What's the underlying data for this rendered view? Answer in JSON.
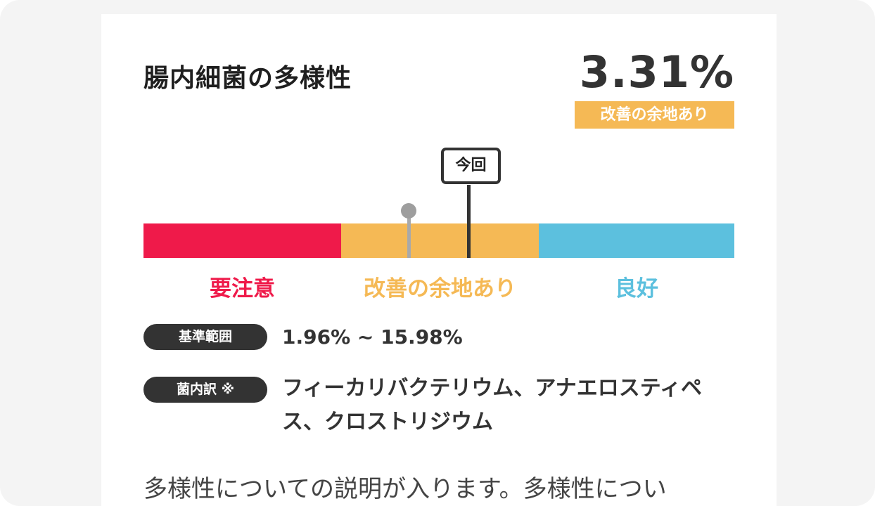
{
  "card": {
    "title": "腸内細菌の多様性",
    "value": "3.31%",
    "status_badge": "改善の余地あり"
  },
  "gauge": {
    "marker_current_label": "今回",
    "marker_current_position": 0.55,
    "marker_previous_position": 0.45,
    "segments": [
      {
        "label": "要注意",
        "color": "#ef1a4a"
      },
      {
        "label": "改善の余地あり",
        "color": "#f5b955"
      },
      {
        "label": "良好",
        "color": "#5cc0de"
      }
    ]
  },
  "reference": {
    "label": "基準範囲",
    "value": "1.96% ~ 15.98%"
  },
  "breakdown": {
    "label": "菌内訳 ※",
    "value": "フィーカリバクテリウム、アナエロスティペス、クロストリジウム"
  },
  "description": "多様性についての説明が入ります。多様性につい"
}
